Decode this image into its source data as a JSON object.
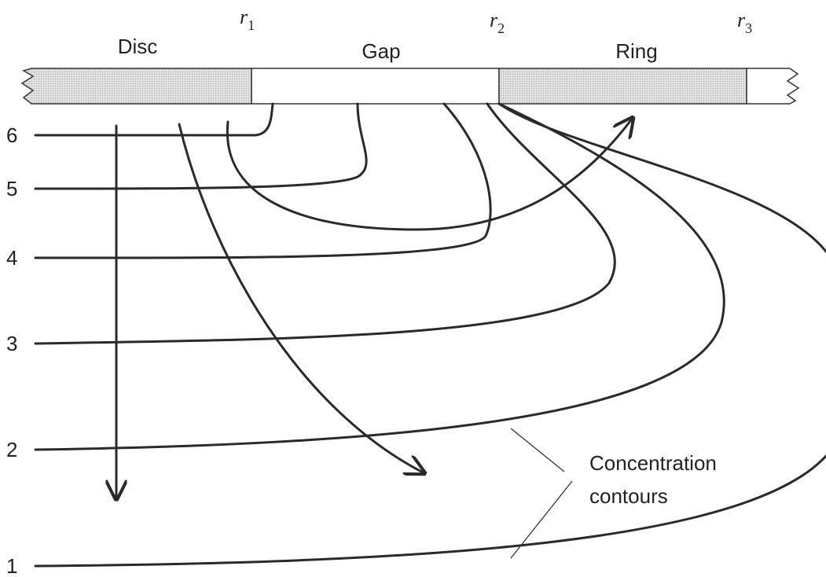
{
  "regions": [
    "Disc",
    "Gap",
    "Ring"
  ],
  "radii": [
    {
      "symbol": "r",
      "sub": "1"
    },
    {
      "symbol": "r",
      "sub": "2"
    },
    {
      "symbol": "r",
      "sub": "3"
    }
  ],
  "contours": [
    "6",
    "5",
    "4",
    "3",
    "2",
    "1"
  ],
  "caption": [
    "Concentration",
    "contours"
  ]
}
